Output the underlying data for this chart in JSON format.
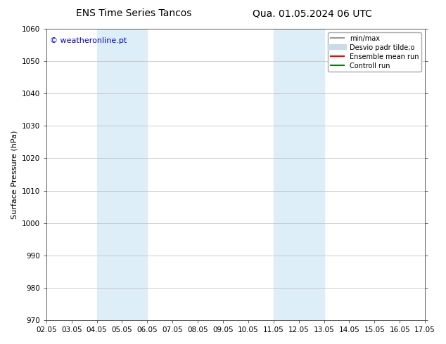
{
  "title_left": "ENS Time Series Tancos",
  "title_right": "Qua. 01.05.2024 06 UTC",
  "ylabel": "Surface Pressure (hPa)",
  "ylim": [
    970,
    1060
  ],
  "yticks": [
    970,
    980,
    990,
    1000,
    1010,
    1020,
    1030,
    1040,
    1050,
    1060
  ],
  "xtick_labels": [
    "02.05",
    "03.05",
    "04.05",
    "05.05",
    "06.05",
    "07.05",
    "08.05",
    "09.05",
    "10.05",
    "11.05",
    "12.05",
    "13.05",
    "14.05",
    "15.05",
    "16.05",
    "17.05"
  ],
  "xtick_positions": [
    0,
    1,
    2,
    3,
    4,
    5,
    6,
    7,
    8,
    9,
    10,
    11,
    12,
    13,
    14,
    15
  ],
  "shaded_regions": [
    {
      "xmin": 2,
      "xmax": 4,
      "color": "#ddeef8"
    },
    {
      "xmin": 9,
      "xmax": 11,
      "color": "#ddeef8"
    }
  ],
  "watermark_text": "© weatheronline.pt",
  "watermark_color": "#0000cc",
  "legend_entries": [
    {
      "label": "min/max",
      "color": "#999999",
      "lw": 1.5
    },
    {
      "label": "Desvio padr tilde;o",
      "color": "#c8dce8",
      "lw": 6
    },
    {
      "label": "Ensemble mean run",
      "color": "#ff0000",
      "lw": 1.5
    },
    {
      "label": "Controll run",
      "color": "#008000",
      "lw": 1.5
    }
  ],
  "bg_color": "#ffffff",
  "fig_bg_color": "#ffffff",
  "grid_color": "#bbbbbb",
  "title_fontsize": 10,
  "tick_fontsize": 7.5,
  "ylabel_fontsize": 8,
  "watermark_fontsize": 8,
  "legend_fontsize": 7
}
